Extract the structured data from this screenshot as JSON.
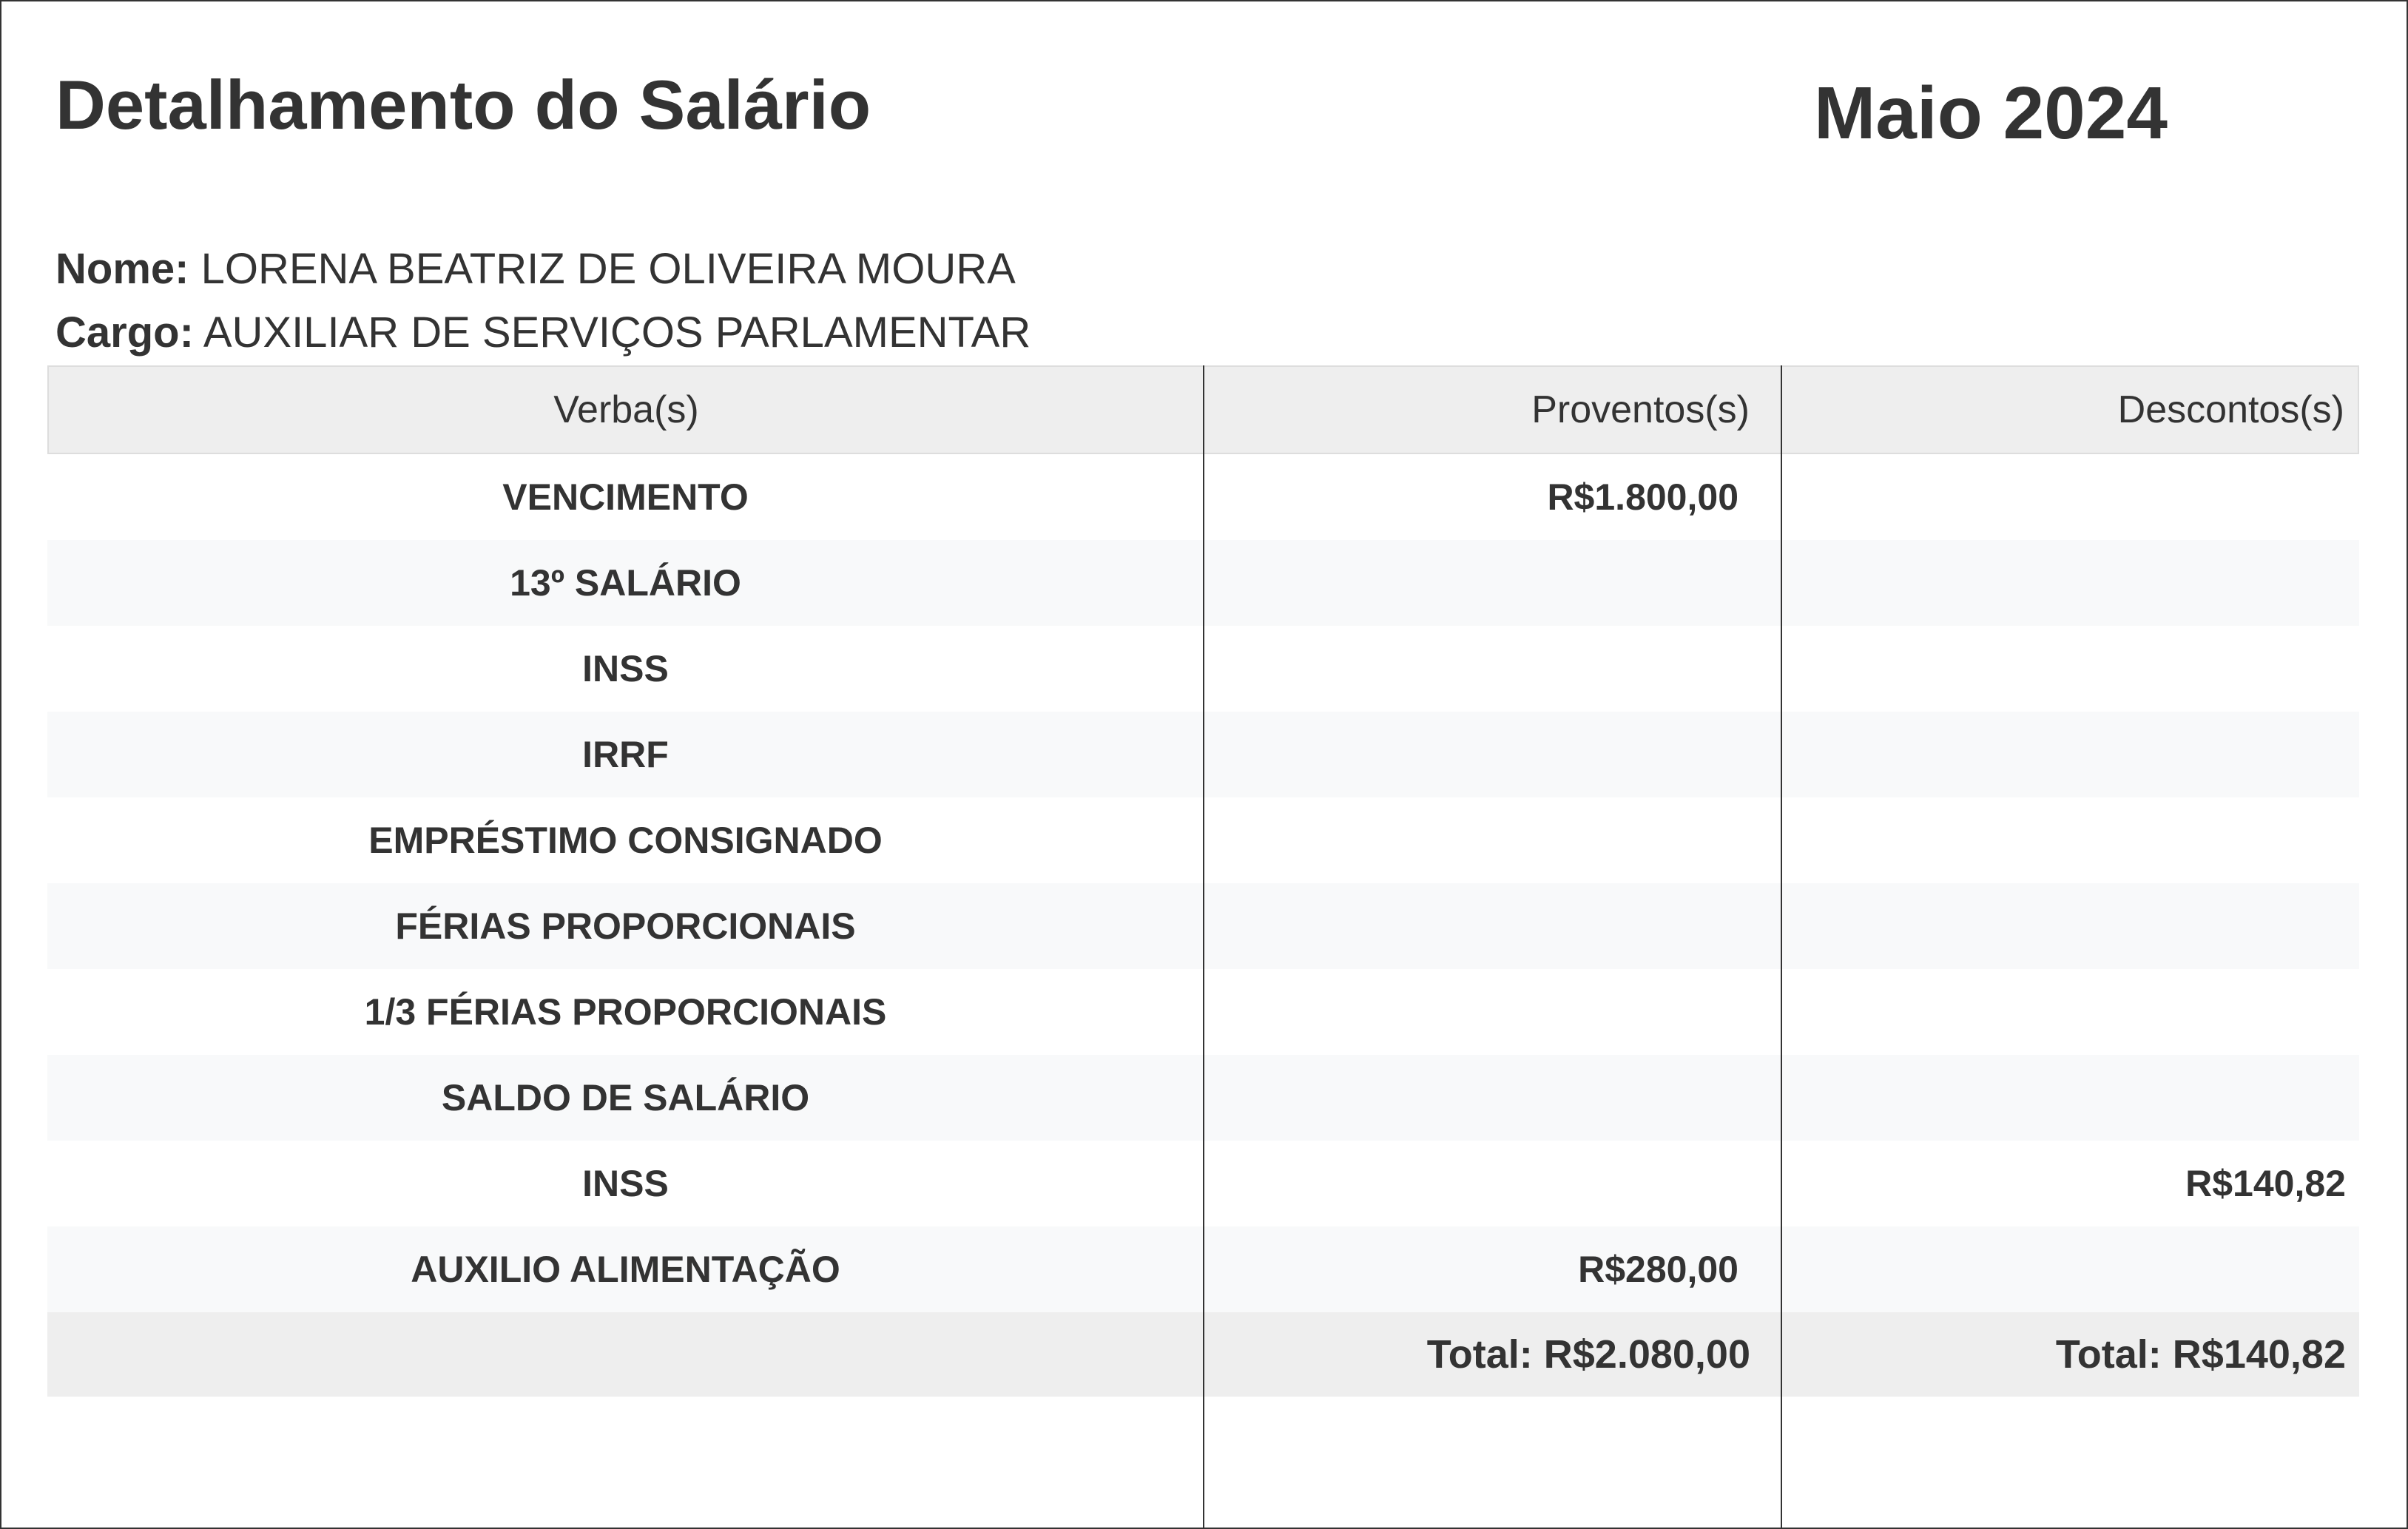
{
  "title": "Detalhamento do Salário",
  "period": "Maio 2024",
  "employee": {
    "name_label": "Nome:",
    "name": "LORENA BEATRIZ DE OLIVEIRA MOURA",
    "role_label": "Cargo:",
    "role": "AUXILIAR DE SERVIÇOS PARLAMENTAR"
  },
  "table": {
    "headers": [
      "Verba(s)",
      "Proventos(s)",
      "Descontos(s)"
    ],
    "rows": [
      {
        "verba": "VENCIMENTO",
        "provento": "R$1.800,00",
        "desconto": ""
      },
      {
        "verba": "13º SALÁRIO",
        "provento": "",
        "desconto": ""
      },
      {
        "verba": "INSS",
        "provento": "",
        "desconto": ""
      },
      {
        "verba": "IRRF",
        "provento": "",
        "desconto": ""
      },
      {
        "verba": "EMPRÉSTIMO CONSIGNADO",
        "provento": "",
        "desconto": ""
      },
      {
        "verba": "FÉRIAS PROPORCIONAIS",
        "provento": "",
        "desconto": ""
      },
      {
        "verba": "1/3 FÉRIAS PROPORCIONAIS",
        "provento": "",
        "desconto": ""
      },
      {
        "verba": "SALDO DE SALÁRIO",
        "provento": "",
        "desconto": ""
      },
      {
        "verba": "INSS",
        "provento": "",
        "desconto": "R$140,82"
      },
      {
        "verba": "AUXILIO ALIMENTAÇÃO",
        "provento": "R$280,00",
        "desconto": ""
      }
    ],
    "total_proventos": "Total: R$2.080,00",
    "total_descontos": "Total: R$140,82"
  }
}
